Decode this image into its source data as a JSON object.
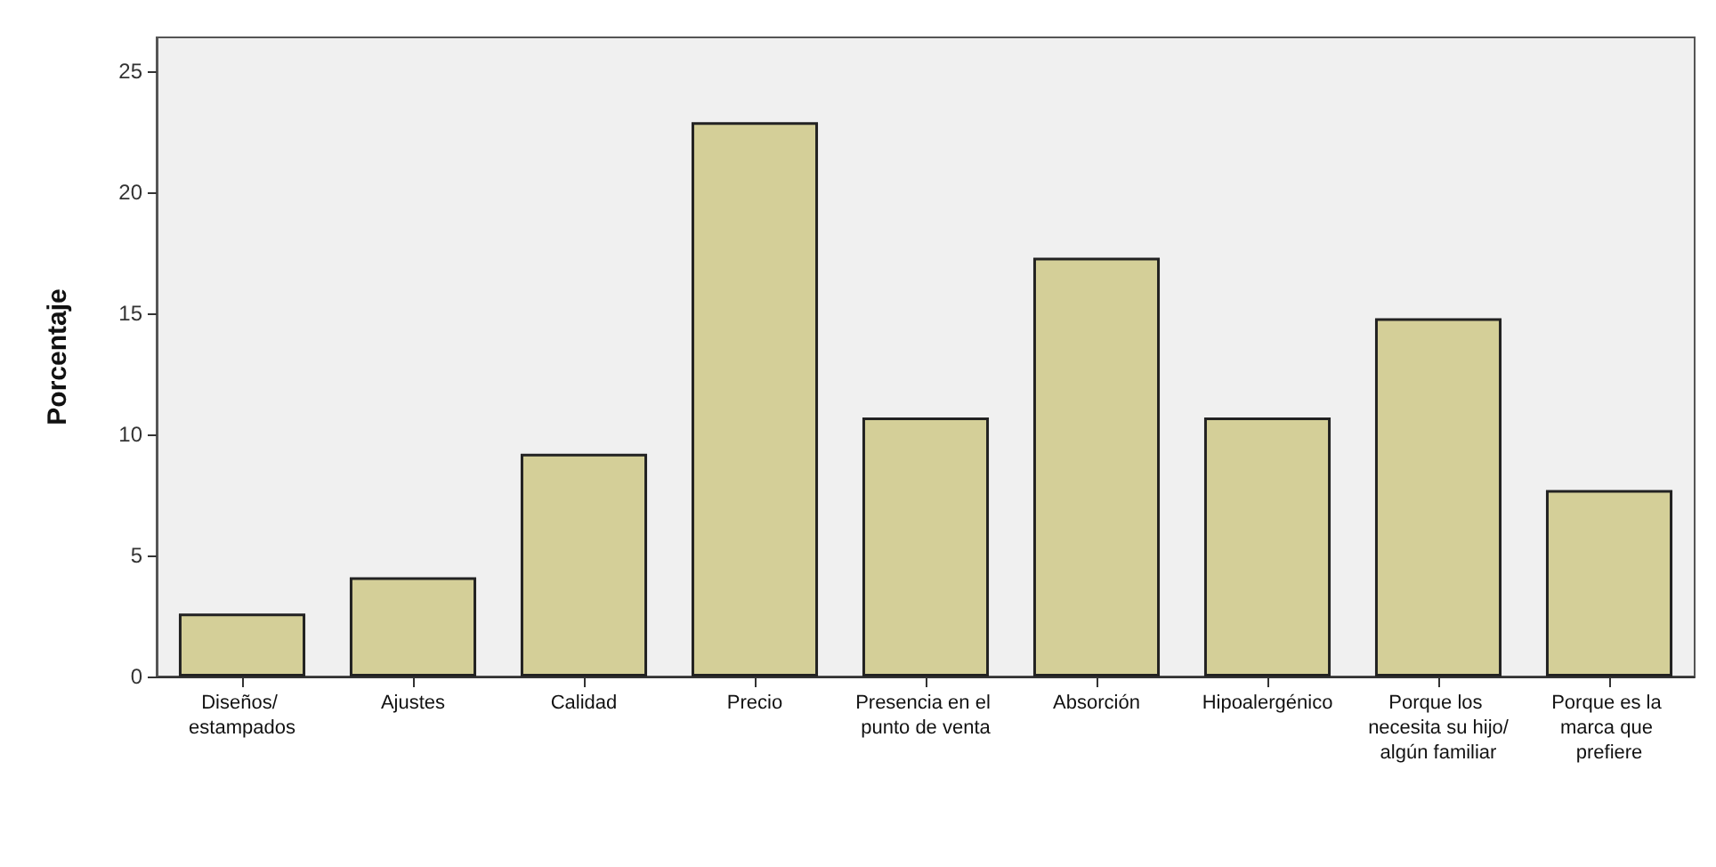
{
  "chart_data": {
    "type": "bar",
    "ylabel": "Porcentaje",
    "categories": [
      "Diseños/ estampados",
      "Ajustes",
      "Calidad",
      "Precio",
      "Presencia en el punto de venta",
      "Absorción",
      "Hipoalergénico",
      "Porque los necesita su hijo/algún familiar",
      "Porque es la marca que prefiere"
    ],
    "values": [
      2.6,
      4.1,
      9.2,
      22.9,
      10.7,
      17.3,
      10.7,
      14.8,
      7.7
    ],
    "color": "#d4cf98",
    "ylim": [
      0,
      26.4
    ],
    "yticks": [
      0,
      5,
      10,
      15,
      20,
      25
    ],
    "grid": false
  }
}
